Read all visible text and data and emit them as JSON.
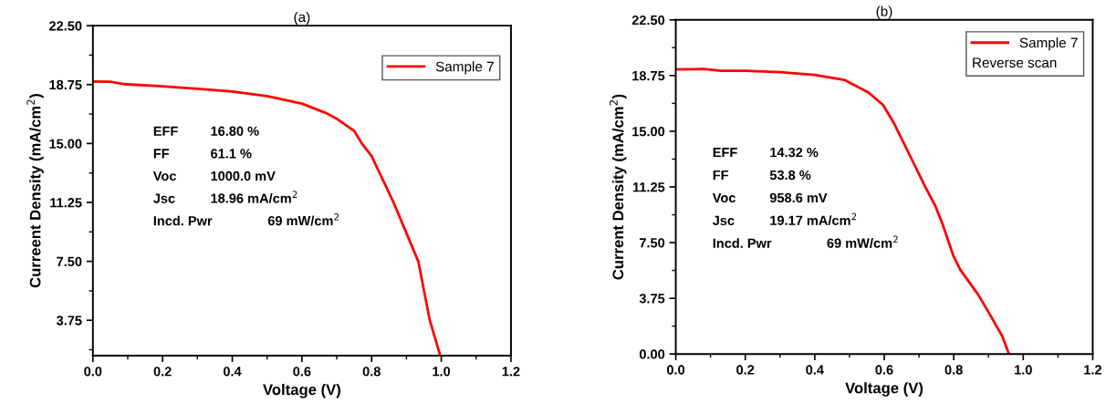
{
  "chart_data": [
    {
      "type": "line",
      "title": "(a)",
      "xlabel": "Voltage (V)",
      "ylabel": "Curreent Density (mA/cm$^{2}$)",
      "series": [
        {
          "name": "Sample 7",
          "color": "#ff0000",
          "x": [
            0,
            0.05,
            0.09,
            0.2,
            0.3,
            0.4,
            0.5,
            0.6,
            0.67,
            0.7,
            0.75,
            0.772,
            0.8,
            0.863,
            0.9,
            0.934,
            0.967,
            0.997
          ],
          "values": [
            18.95,
            18.93,
            18.78,
            18.64,
            18.48,
            18.31,
            18.02,
            17.54,
            16.93,
            16.58,
            15.8,
            15.0,
            14.2,
            11.25,
            9.3,
            7.5,
            3.75,
            1.5
          ]
        }
      ],
      "xlim": [
        0,
        1.2
      ],
      "ylim": [
        1.5,
        22.5
      ],
      "xticks": [
        {
          "value": 0,
          "label": "0.0"
        },
        {
          "value": 0.2,
          "label": "0.2"
        },
        {
          "value": 0.4,
          "label": "0.4"
        },
        {
          "value": 0.6,
          "label": "0.6"
        },
        {
          "value": 0.8,
          "label": "0.8"
        },
        {
          "value": 1.0,
          "label": "1.0"
        },
        {
          "value": 1.2,
          "label": "1.2"
        }
      ],
      "yticks": [
        {
          "value": 3.75,
          "label": "3.75"
        },
        {
          "value": 7.5,
          "label": "7.50"
        },
        {
          "value": 11.25,
          "label": "11.25"
        },
        {
          "value": 15,
          "label": "15.00"
        },
        {
          "value": 18.75,
          "label": "18.75"
        },
        {
          "value": 22.5,
          "label": "22.50"
        }
      ],
      "annotations": [
        "EFF\t16.80 %",
        "FF\t61.1 %",
        "Voc\t1000.0 mV",
        "Jsc\t18.96 mA/cm$^{2}$",
        "Incd. Pwr\t\t69 mW/cm$^{2}$"
      ],
      "legend": "top right",
      "grid": false,
      "marker": "none",
      "line_style": "solid"
    },
    {
      "type": "line",
      "title": "(b)",
      "xlabel": "Voltage (V)",
      "ylabel": "Current Density (mA/cm$^{2}$)",
      "legend_title": "Reverse scan",
      "series": [
        {
          "name": "Sample 7",
          "color": "#ff0000",
          "x": [
            0,
            0.08,
            0.13,
            0.2,
            0.3,
            0.4,
            0.485,
            0.556,
            0.597,
            0.627,
            0.667,
            0.718,
            0.748,
            0.768,
            0.799,
            0.819,
            0.87,
            0.9,
            0.94,
            0.959
          ],
          "values": [
            19.17,
            19.19,
            19.07,
            19.07,
            18.98,
            18.8,
            18.46,
            17.59,
            16.76,
            15.58,
            13.69,
            11.26,
            9.92,
            8.73,
            6.61,
            5.67,
            4.01,
            2.83,
            1.18,
            0
          ]
        }
      ],
      "xlim": [
        0,
        1.2
      ],
      "ylim": [
        0,
        22.5
      ],
      "xticks": [
        {
          "value": 0,
          "label": "0.0"
        },
        {
          "value": 0.2,
          "label": "0.2"
        },
        {
          "value": 0.4,
          "label": "0.4"
        },
        {
          "value": 0.6,
          "label": "0.6"
        },
        {
          "value": 0.8,
          "label": "0.8"
        },
        {
          "value": 1.0,
          "label": "1.0"
        },
        {
          "value": 1.2,
          "label": "1.2"
        }
      ],
      "yticks": [
        {
          "value": 0,
          "label": "0.00"
        },
        {
          "value": 3.75,
          "label": "3.75"
        },
        {
          "value": 7.5,
          "label": "7.50"
        },
        {
          "value": 11.25,
          "label": "11.25"
        },
        {
          "value": 15,
          "label": "15.00"
        },
        {
          "value": 18.75,
          "label": "18.75"
        },
        {
          "value": 22.5,
          "label": "22.50"
        }
      ],
      "annotations": [
        "EFF\t14.32 %",
        "FF\t53.8 %",
        "Voc\t958.6 mV",
        "Jsc\t19.17 mA/cm$^{2}$",
        "Incd. Pwr\t\t69 mW/cm$^{2}$"
      ],
      "legend": "top right",
      "grid": false,
      "marker": "none",
      "line_style": "solid"
    }
  ]
}
